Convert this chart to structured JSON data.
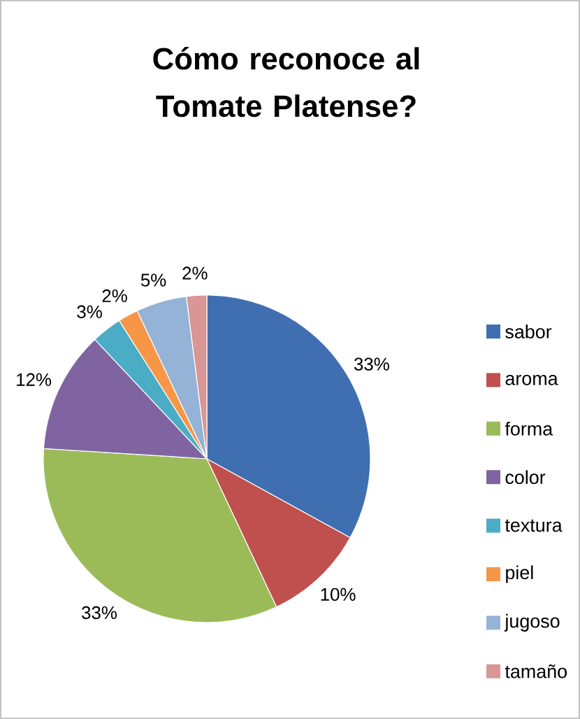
{
  "chart_data": {
    "type": "pie",
    "title": "Cómo reconoce al Tomate Platense?",
    "categories": [
      "sabor",
      "aroma",
      "forma",
      "color",
      "textura",
      "piel",
      "jugoso",
      "tamaño"
    ],
    "values": [
      33,
      10,
      33,
      12,
      3,
      2,
      5,
      2
    ],
    "value_labels": [
      "33%",
      "10%",
      "33%",
      "12%",
      "3%",
      "2%",
      "5%",
      "2%"
    ],
    "colors": [
      "#3f6fb0",
      "#c0504d",
      "#9bbb59",
      "#8064a2",
      "#4bacc6",
      "#f79646",
      "#95b3d7",
      "#d99694"
    ],
    "legend": "right"
  }
}
